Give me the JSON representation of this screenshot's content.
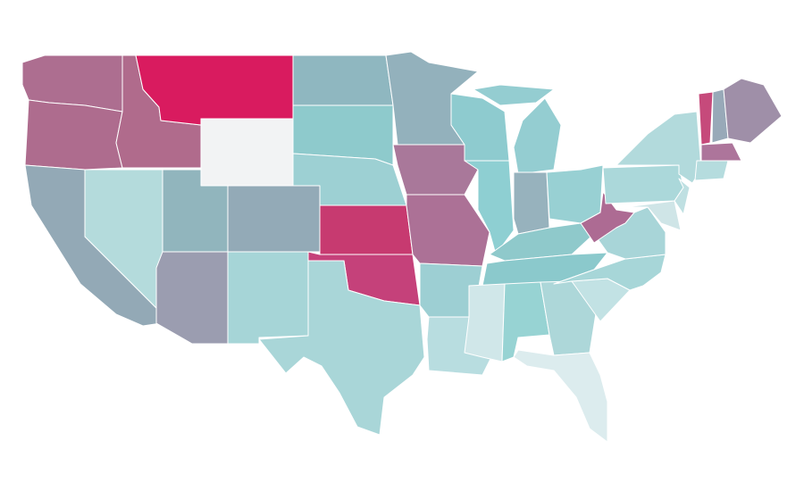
{
  "regions": [
    {
      "color": "#ad6e90"
    },
    {
      "color": "#ae6c8e"
    },
    {
      "color": "#b06b8c"
    },
    {
      "color": "#d91b5f"
    },
    {
      "color": "#f2f3f4"
    },
    {
      "color": "#93a9b6"
    },
    {
      "color": "#b4dbdc"
    },
    {
      "color": "#91b5bd"
    },
    {
      "color": "#93aab7"
    },
    {
      "color": "#9b9db0"
    },
    {
      "color": "#a6d5d7"
    },
    {
      "color": "#8fb7c0"
    },
    {
      "color": "#8ecacc"
    },
    {
      "color": "#9dd0d3"
    },
    {
      "color": "#c73a70"
    },
    {
      "color": "#c5417a"
    },
    {
      "color": "#a9d6d8"
    },
    {
      "color": "#93b1bc"
    },
    {
      "color": "#a9789a"
    },
    {
      "color": "#ac7196"
    },
    {
      "color": "#9dcfd3"
    },
    {
      "color": "#b8dde0"
    },
    {
      "color": "#8ecbcf"
    },
    {
      "color": "#8ecfd2"
    },
    {
      "color": "#94cdd1"
    },
    {
      "color": "#97b2bd"
    },
    {
      "color": "#98d0d3"
    },
    {
      "color": "#8fc9cb"
    },
    {
      "color": "#8bc9cc"
    },
    {
      "color": "#d0e7e9"
    },
    {
      "color": "#97d3d3"
    },
    {
      "color": "#add7d9"
    },
    {
      "color": "#dcecee"
    },
    {
      "color": "#c2e2e4"
    },
    {
      "color": "#a7d6d8"
    },
    {
      "color": "#a8d5d8"
    },
    {
      "color": "#ad6b93"
    },
    {
      "color": "#abd8da"
    },
    {
      "color": "#b2dadc"
    },
    {
      "color": "#cfe5e7"
    },
    {
      "color": "#bfe0e2"
    },
    {
      "color": "#c64a7b"
    },
    {
      "color": "#98a9b8"
    },
    {
      "color": "#9f8fa8"
    },
    {
      "color": "#ad759b"
    },
    {
      "color": "#b5dcde"
    }
  ]
}
